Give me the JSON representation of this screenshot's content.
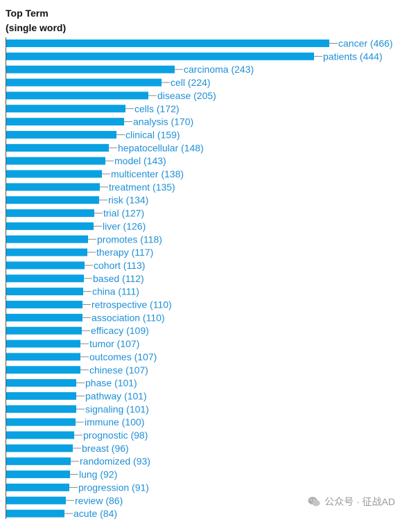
{
  "chart_data": {
    "type": "bar",
    "orientation": "horizontal",
    "title_lines": [
      "Top Term",
      "(single word)"
    ],
    "bar_color": "#0aa1e2",
    "label_color": "#1f8fd6",
    "axis_color": "#555555",
    "bars": [
      {
        "term": "cancer",
        "count": 466,
        "label": "cancer (466)"
      },
      {
        "term": "patients",
        "count": 444,
        "label": "patients (444)"
      },
      {
        "term": "carcinoma",
        "count": 243,
        "label": "carcinoma (243)"
      },
      {
        "term": "cell",
        "count": 224,
        "label": "cell (224)"
      },
      {
        "term": "disease",
        "count": 205,
        "label": "disease (205)"
      },
      {
        "term": "cells",
        "count": 172,
        "label": "cells (172)"
      },
      {
        "term": "analysis",
        "count": 170,
        "label": "analysis (170)"
      },
      {
        "term": "clinical",
        "count": 159,
        "label": "clinical (159)"
      },
      {
        "term": "hepatocellular",
        "count": 148,
        "label": "hepatocellular (148)"
      },
      {
        "term": "model",
        "count": 143,
        "label": "model (143)"
      },
      {
        "term": "multicenter",
        "count": 138,
        "label": "multicenter (138)"
      },
      {
        "term": "treatment",
        "count": 135,
        "label": "treatment (135)"
      },
      {
        "term": "risk",
        "count": 134,
        "label": "risk (134)"
      },
      {
        "term": "trial",
        "count": 127,
        "label": "trial (127)"
      },
      {
        "term": "liver",
        "count": 126,
        "label": "liver (126)"
      },
      {
        "term": "promotes",
        "count": 118,
        "label": "promotes (118)"
      },
      {
        "term": "therapy",
        "count": 117,
        "label": "therapy (117)"
      },
      {
        "term": "cohort",
        "count": 113,
        "label": "cohort (113)"
      },
      {
        "term": "based",
        "count": 112,
        "label": "based (112)"
      },
      {
        "term": "china",
        "count": 111,
        "label": "china (111)"
      },
      {
        "term": "retrospective",
        "count": 110,
        "label": "retrospective (110)"
      },
      {
        "term": "association",
        "count": 110,
        "label": "association (110)"
      },
      {
        "term": "efficacy",
        "count": 109,
        "label": "efficacy (109)"
      },
      {
        "term": "tumor",
        "count": 107,
        "label": "tumor (107)"
      },
      {
        "term": "outcomes",
        "count": 107,
        "label": "outcomes (107)"
      },
      {
        "term": "chinese",
        "count": 107,
        "label": "chinese (107)"
      },
      {
        "term": "phase",
        "count": 101,
        "label": "phase (101)"
      },
      {
        "term": "pathway",
        "count": 101,
        "label": "pathway (101)"
      },
      {
        "term": "signaling",
        "count": 101,
        "label": "signaling (101)"
      },
      {
        "term": "immune",
        "count": 100,
        "label": "immune (100)"
      },
      {
        "term": "prognostic",
        "count": 98,
        "label": "prognostic (98)"
      },
      {
        "term": "breast",
        "count": 96,
        "label": "breast (96)"
      },
      {
        "term": "randomized",
        "count": 93,
        "label": "randomized (93)"
      },
      {
        "term": "lung",
        "count": 92,
        "label": "lung (92)"
      },
      {
        "term": "progression",
        "count": 91,
        "label": "progression (91)"
      },
      {
        "term": "review",
        "count": 86,
        "label": "review (86)"
      },
      {
        "term": "acute",
        "count": 84,
        "label": "acute (84)"
      }
    ]
  },
  "watermark": {
    "text": "公众号 · 征战AD",
    "icon": "wechat-icon"
  }
}
